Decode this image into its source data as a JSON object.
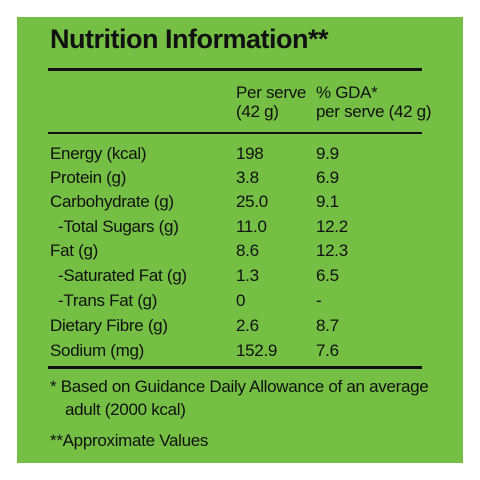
{
  "title": "Nutrition Information**",
  "headers": {
    "per_serve_line1": "Per serve",
    "per_serve_line2": "(42 g)",
    "gda_line1": "% GDA*",
    "gda_line2": "per serve (42 g)"
  },
  "rows": [
    {
      "nutrient": "Energy (kcal)",
      "per_serve": "198",
      "gda": "9.9"
    },
    {
      "nutrient": "Protein (g)",
      "per_serve": "3.8",
      "gda": "6.9"
    },
    {
      "nutrient": "Carbohydrate (g)",
      "per_serve": "25.0",
      "gda": "9.1"
    },
    {
      "nutrient": "-Total Sugars (g)",
      "per_serve": "11.0",
      "gda": "12.2"
    },
    {
      "nutrient": "Fat (g)",
      "per_serve": "8.6",
      "gda": "12.3"
    },
    {
      "nutrient": "-Saturated Fat (g)",
      "per_serve": "1.3",
      "gda": "6.5"
    },
    {
      "nutrient": "-Trans Fat (g)",
      "per_serve": "0",
      "gda": "-"
    },
    {
      "nutrient": "Dietary Fibre (g)",
      "per_serve": "2.6",
      "gda": "8.7"
    },
    {
      "nutrient": "Sodium (mg)",
      "per_serve": "152.9",
      "gda": "7.6"
    }
  ],
  "footnotes": {
    "gda_line1": "* Based on Guidance Daily Allowance of an average",
    "gda_line2": "adult (2000 kcal)",
    "approx": "**Approximate Values"
  },
  "colors": {
    "panel": "#74bf44",
    "text": "#111111"
  }
}
